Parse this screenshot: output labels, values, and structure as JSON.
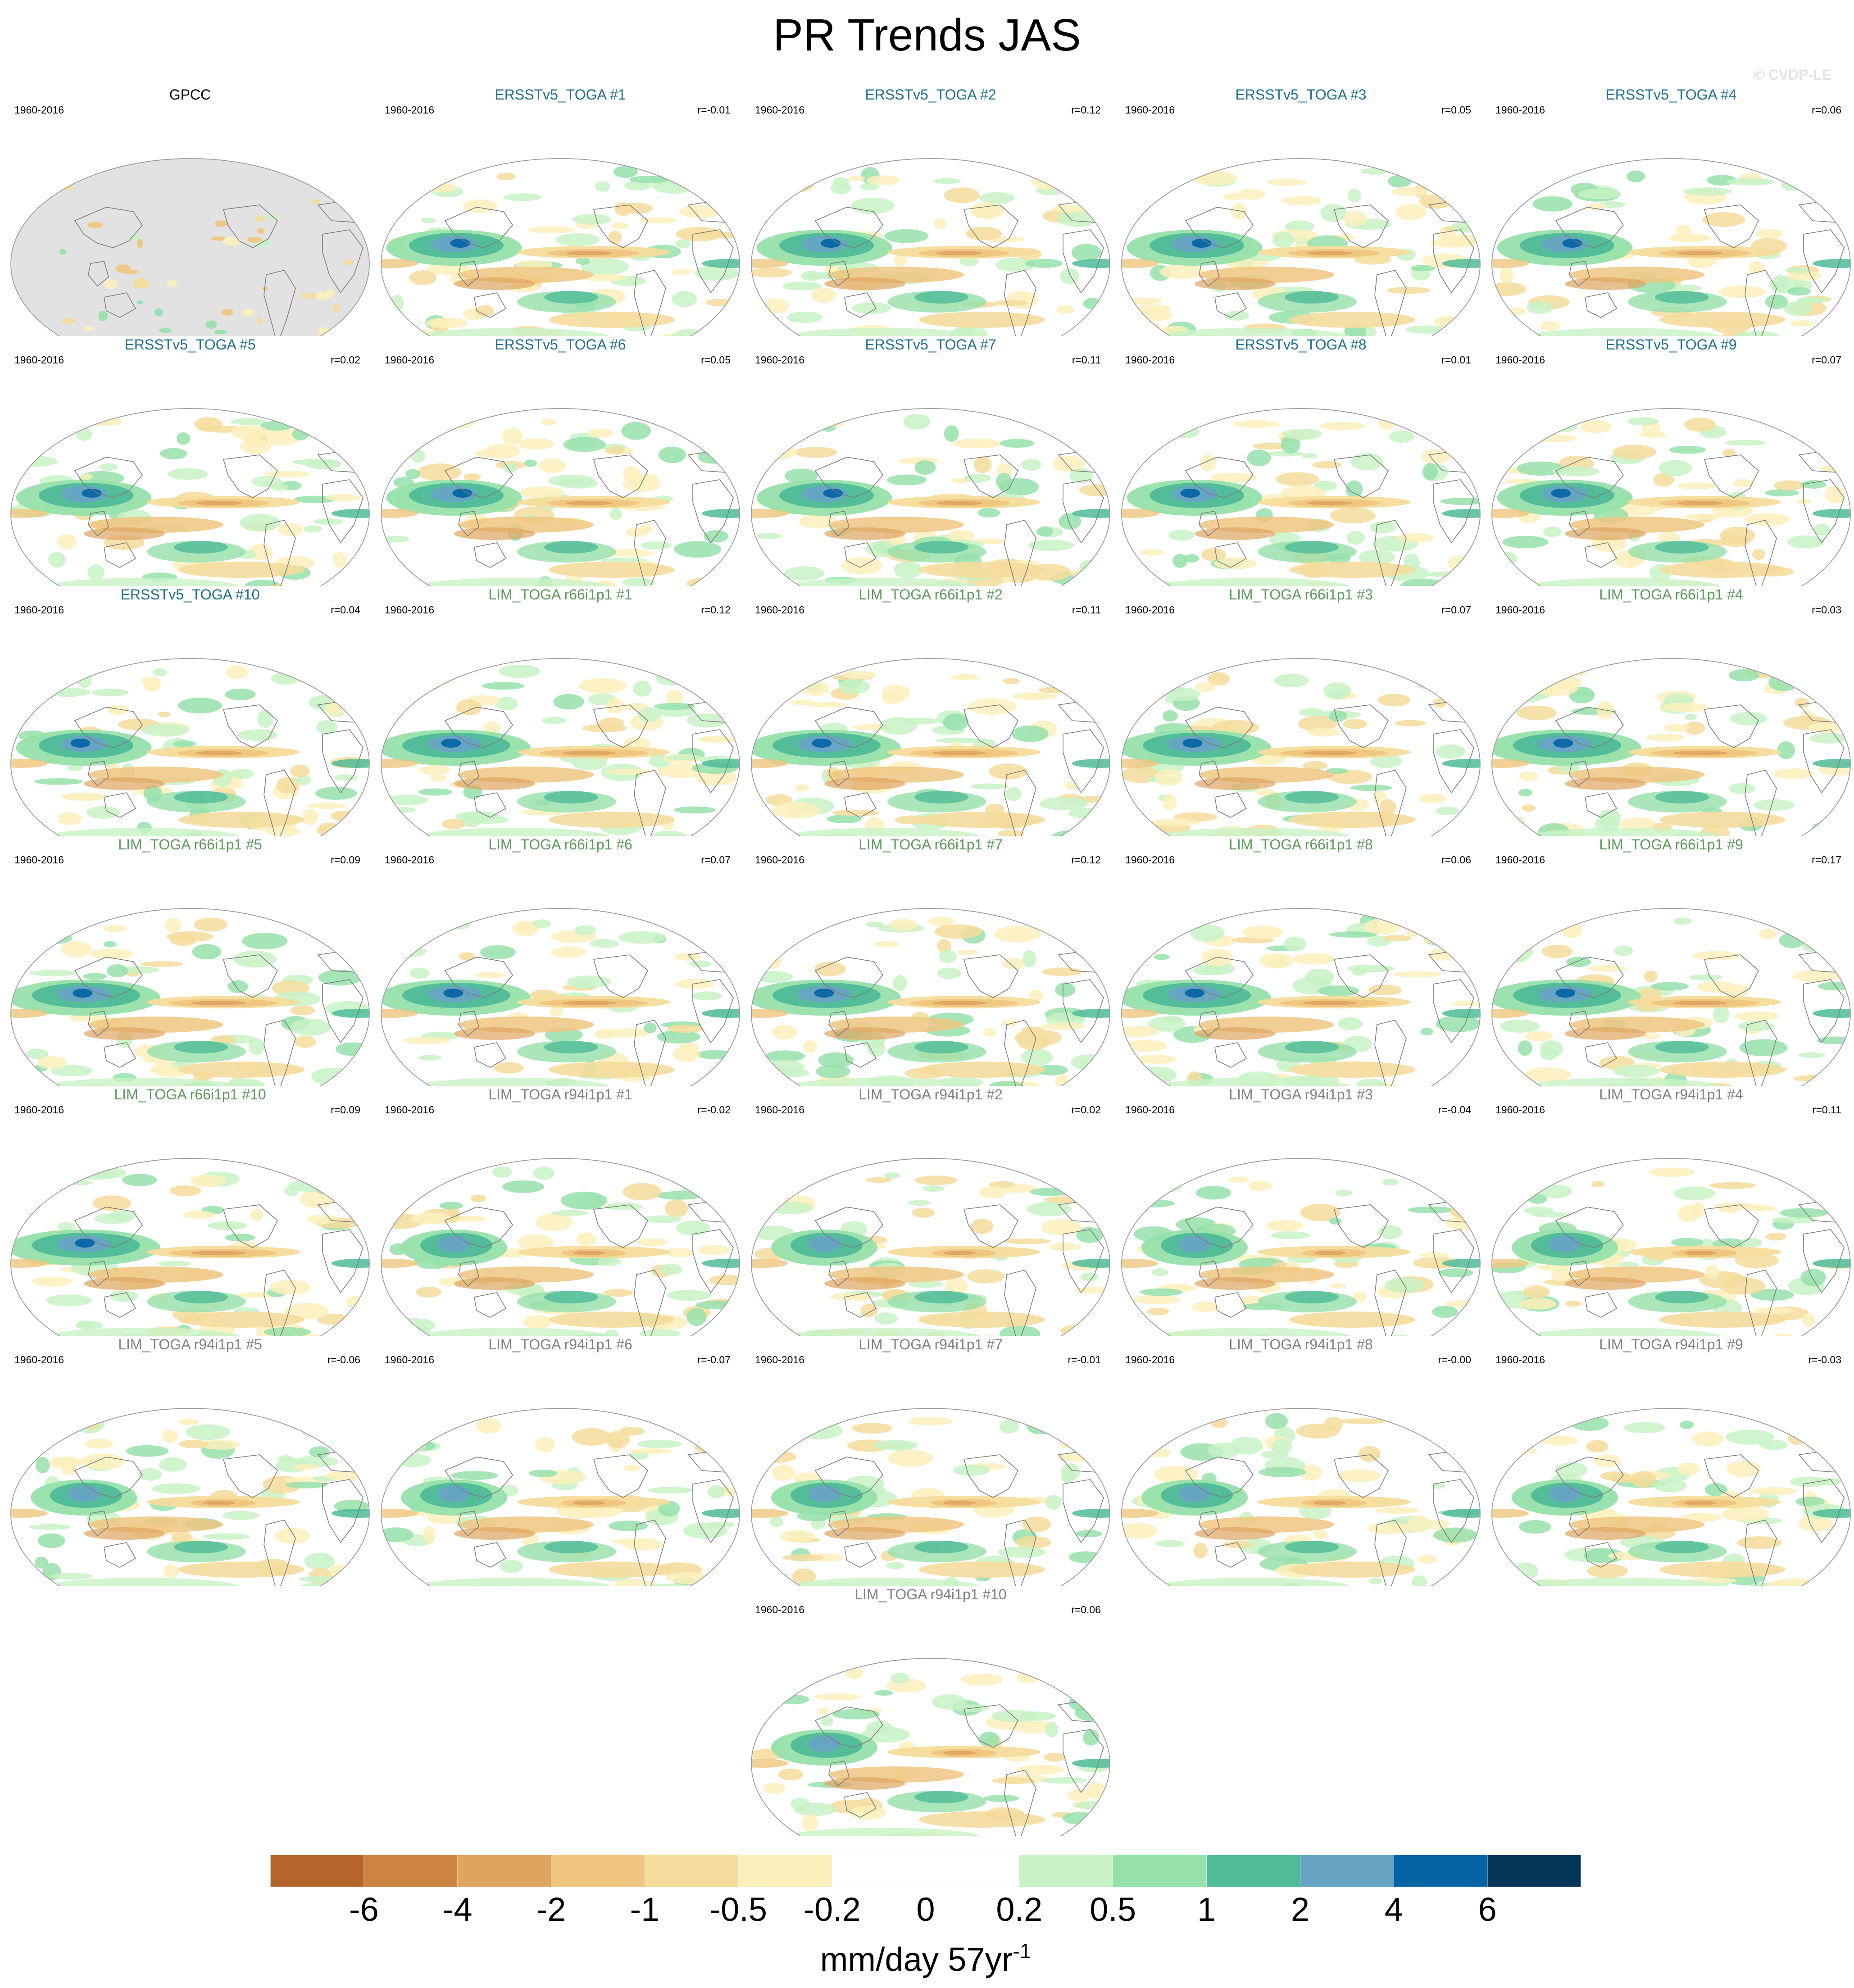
{
  "title": "PR Trends JAS",
  "watermark": "© CVDP-LE",
  "period": "1960-2016",
  "colorbar": {
    "labels": [
      "-6",
      "-4",
      "-2",
      "-1",
      "-0.5",
      "-0.2",
      "0",
      "0.2",
      "0.5",
      "1",
      "2",
      "4",
      "6"
    ],
    "colors": [
      "#b5642a",
      "#cc8440",
      "#dea460",
      "#efc580",
      "#f5dc9c",
      "#fbf0bc",
      "#ffffff",
      "#ffffff",
      "#c8f2c6",
      "#96e0aa",
      "#4fbb98",
      "#68a4c4",
      "#0764a4",
      "#043558"
    ],
    "units_text": "mm/day 57yr",
    "units_sup": "-1"
  },
  "panels": [
    {
      "title": "GPCC",
      "corr": "",
      "color": "#000000",
      "style": "obs",
      "seed": 1
    },
    {
      "title": "ERSSTv5_TOGA #1",
      "corr": "r=-0.01",
      "color": "#1f6f8f",
      "style": "e",
      "seed": 2
    },
    {
      "title": "ERSSTv5_TOGA #2",
      "corr": "r=0.12",
      "color": "#1f6f8f",
      "style": "e",
      "seed": 3
    },
    {
      "title": "ERSSTv5_TOGA #3",
      "corr": "r=0.05",
      "color": "#1f6f8f",
      "style": "e",
      "seed": 4
    },
    {
      "title": "ERSSTv5_TOGA #4",
      "corr": "r=0.06",
      "color": "#1f6f8f",
      "style": "e",
      "seed": 5
    },
    {
      "title": "ERSSTv5_TOGA #5",
      "corr": "r=0.02",
      "color": "#1f6f8f",
      "style": "e",
      "seed": 6
    },
    {
      "title": "ERSSTv5_TOGA #6",
      "corr": "r=0.05",
      "color": "#1f6f8f",
      "style": "e",
      "seed": 7
    },
    {
      "title": "ERSSTv5_TOGA #7",
      "corr": "r=0.11",
      "color": "#1f6f8f",
      "style": "e",
      "seed": 8
    },
    {
      "title": "ERSSTv5_TOGA #8",
      "corr": "r=0.01",
      "color": "#1f6f8f",
      "style": "e",
      "seed": 9
    },
    {
      "title": "ERSSTv5_TOGA #9",
      "corr": "r=0.07",
      "color": "#1f6f8f",
      "style": "e",
      "seed": 10
    },
    {
      "title": "ERSSTv5_TOGA #10",
      "corr": "r=0.04",
      "color": "#1f6f8f",
      "style": "e",
      "seed": 11
    },
    {
      "title": "LIM_TOGA r66i1p1 #1",
      "corr": "r=0.12",
      "color": "#5a9a5a",
      "style": "l66",
      "seed": 12
    },
    {
      "title": "LIM_TOGA r66i1p1 #2",
      "corr": "r=0.11",
      "color": "#5a9a5a",
      "style": "l66",
      "seed": 13
    },
    {
      "title": "LIM_TOGA r66i1p1 #3",
      "corr": "r=0.07",
      "color": "#5a9a5a",
      "style": "l66",
      "seed": 14
    },
    {
      "title": "LIM_TOGA r66i1p1 #4",
      "corr": "r=0.03",
      "color": "#5a9a5a",
      "style": "l66",
      "seed": 15
    },
    {
      "title": "LIM_TOGA r66i1p1 #5",
      "corr": "r=0.09",
      "color": "#5a9a5a",
      "style": "l66",
      "seed": 16
    },
    {
      "title": "LIM_TOGA r66i1p1 #6",
      "corr": "r=0.07",
      "color": "#5a9a5a",
      "style": "l66",
      "seed": 17
    },
    {
      "title": "LIM_TOGA r66i1p1 #7",
      "corr": "r=0.12",
      "color": "#5a9a5a",
      "style": "l66",
      "seed": 18
    },
    {
      "title": "LIM_TOGA r66i1p1 #8",
      "corr": "r=0.06",
      "color": "#5a9a5a",
      "style": "l66",
      "seed": 19
    },
    {
      "title": "LIM_TOGA r66i1p1 #9",
      "corr": "r=0.17",
      "color": "#5a9a5a",
      "style": "l66",
      "seed": 20
    },
    {
      "title": "LIM_TOGA r66i1p1 #10",
      "corr": "r=0.09",
      "color": "#5a9a5a",
      "style": "l66",
      "seed": 21
    },
    {
      "title": "LIM_TOGA r94i1p1 #1",
      "corr": "r=-0.02",
      "color": "#808080",
      "style": "l94",
      "seed": 22
    },
    {
      "title": "LIM_TOGA r94i1p1 #2",
      "corr": "r=0.02",
      "color": "#808080",
      "style": "l94",
      "seed": 23
    },
    {
      "title": "LIM_TOGA r94i1p1 #3",
      "corr": "r=-0.04",
      "color": "#808080",
      "style": "l94",
      "seed": 24
    },
    {
      "title": "LIM_TOGA r94i1p1 #4",
      "corr": "r=0.11",
      "color": "#808080",
      "style": "l94",
      "seed": 25
    },
    {
      "title": "LIM_TOGA r94i1p1 #5",
      "corr": "r=-0.06",
      "color": "#808080",
      "style": "l94",
      "seed": 26
    },
    {
      "title": "LIM_TOGA r94i1p1 #6",
      "corr": "r=-0.07",
      "color": "#808080",
      "style": "l94",
      "seed": 27
    },
    {
      "title": "LIM_TOGA r94i1p1 #7",
      "corr": "r=-0.01",
      "color": "#808080",
      "style": "l94",
      "seed": 28
    },
    {
      "title": "LIM_TOGA r94i1p1 #8",
      "corr": "r=-0.00",
      "color": "#808080",
      "style": "l94",
      "seed": 29
    },
    {
      "title": "LIM_TOGA r94i1p1 #9",
      "corr": "r=-0.03",
      "color": "#808080",
      "style": "l94",
      "seed": 30
    },
    {
      "title": "LIM_TOGA r94i1p1 #10",
      "corr": "r=0.06",
      "color": "#808080",
      "style": "l94",
      "seed": 31
    }
  ]
}
